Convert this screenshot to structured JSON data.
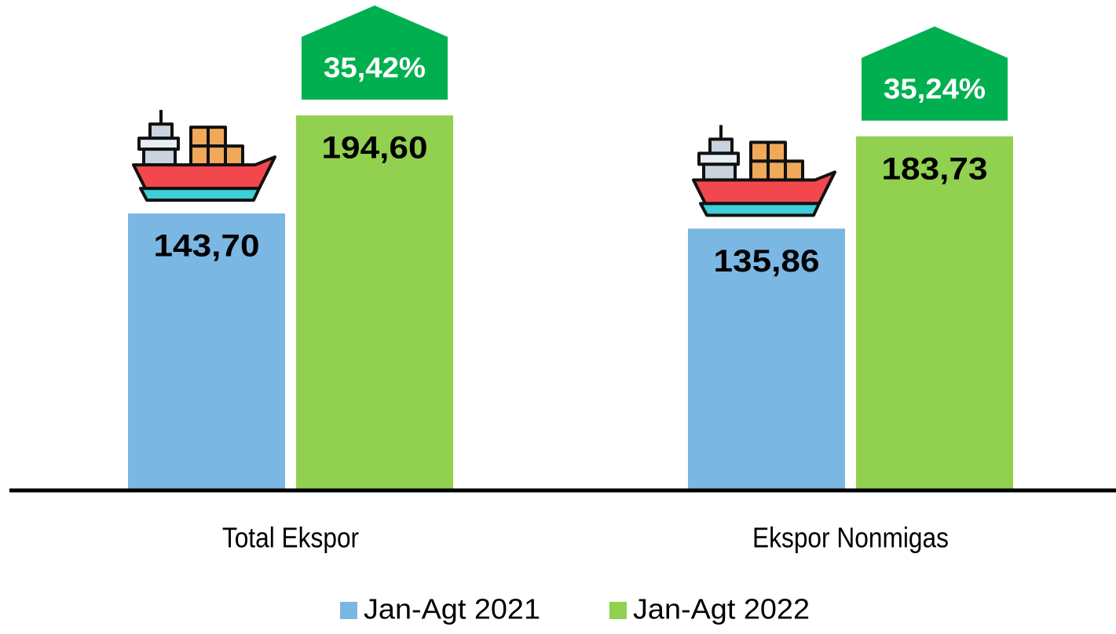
{
  "chart_data": {
    "type": "bar",
    "categories": [
      "Total Ekspor",
      "Ekspor Nonmigas"
    ],
    "series": [
      {
        "name": "Jan-Agt 2021",
        "color": "#7ab7e3",
        "values": [
          143.7,
          135.86
        ],
        "value_labels": [
          "143,70",
          "135,86"
        ]
      },
      {
        "name": "Jan-Agt 2022",
        "color": "#92d050",
        "values": [
          194.6,
          183.73
        ],
        "value_labels": [
          "194,60",
          "183,73"
        ]
      }
    ],
    "annotations": [
      "35,42%",
      "35,24%"
    ],
    "annotation_color": "#00b050",
    "ylim": [
      0,
      250
    ]
  }
}
